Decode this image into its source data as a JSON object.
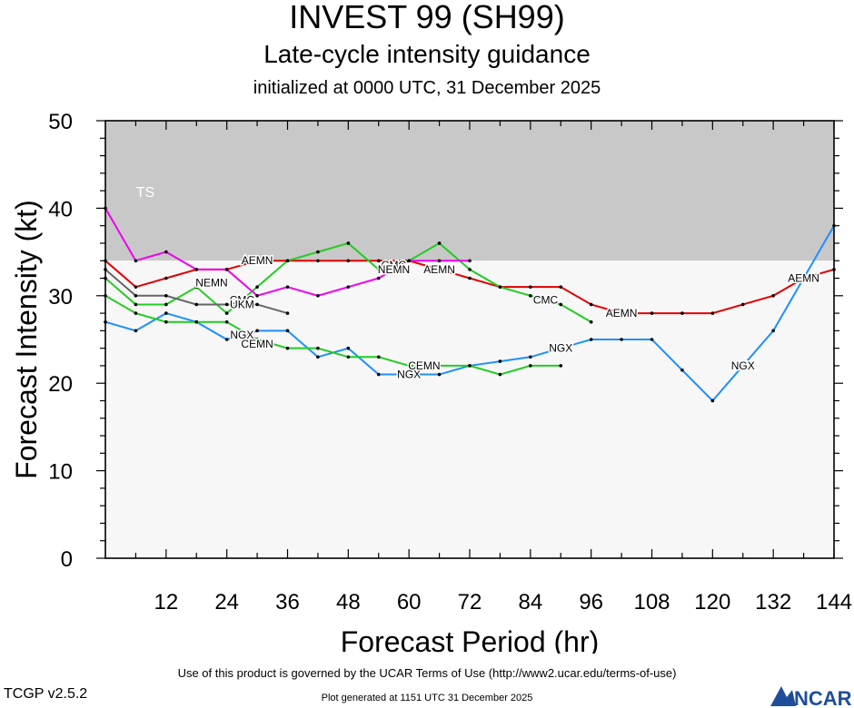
{
  "header": {
    "title": "INVEST 99 (SH99)",
    "subtitle": "Late-cycle intensity guidance",
    "initialized": "initialized at 0000 UTC, 31 December 2025"
  },
  "footer": {
    "terms": "Use of this product is governed by the UCAR Terms of Use (http://www2.ucar.edu/terms-of-use)",
    "generated": "Plot generated at 1151 UTC   31 December 2025",
    "version": "TCGP v2.5.2",
    "logo_text": "NCAR"
  },
  "chart_data": {
    "type": "line",
    "xlabel": "Forecast Period (hr)",
    "ylabel": "Forecast Intensity (kt)",
    "xlim": [
      0,
      144
    ],
    "ylim": [
      0,
      50
    ],
    "xticks": [
      12,
      24,
      36,
      48,
      60,
      72,
      84,
      96,
      108,
      120,
      132,
      144
    ],
    "yticks": [
      0,
      10,
      20,
      30,
      40,
      50
    ],
    "bands": [
      {
        "label": "TS",
        "from": 34,
        "to": 50,
        "color": "#c8c8c8"
      },
      {
        "label": "",
        "from": 0,
        "to": 34,
        "color": "#f7f7f7"
      }
    ],
    "series": [
      {
        "name": "AEMN",
        "color": "#e00000",
        "x": [
          0,
          6,
          12,
          18,
          24,
          30,
          36,
          42,
          48,
          54,
          60,
          66,
          72,
          78,
          84,
          90,
          96,
          102,
          108,
          114,
          120,
          126,
          132,
          138,
          144
        ],
        "y": [
          34,
          31,
          32,
          33,
          33,
          34,
          34,
          34,
          34,
          34,
          34,
          33,
          32,
          31,
          31,
          31,
          29,
          28,
          28,
          28,
          28,
          29,
          30,
          32,
          33
        ],
        "labels": [
          {
            "x": 30,
            "y": 34,
            "text": "AEMN"
          },
          {
            "x": 66,
            "y": 33,
            "text": "AEMN"
          },
          {
            "x": 102,
            "y": 28,
            "text": "AEMN"
          },
          {
            "x": 138,
            "y": 32,
            "text": "AEMN"
          }
        ]
      },
      {
        "name": "NGX",
        "color": "#1e90ff",
        "x": [
          0,
          6,
          12,
          18,
          24,
          30,
          36,
          42,
          48,
          54,
          60,
          66,
          72,
          78,
          84,
          90,
          96,
          102,
          108,
          114,
          120,
          126,
          132,
          138,
          144
        ],
        "y": [
          27,
          26,
          28,
          27,
          25,
          26,
          26,
          23,
          24,
          21,
          21,
          21,
          22,
          22.5,
          23,
          24,
          25,
          25,
          25,
          21.5,
          18,
          22,
          26,
          32,
          38
        ],
        "labels": [
          {
            "x": 27,
            "y": 25.5,
            "text": "NGX"
          },
          {
            "x": 60,
            "y": 21,
            "text": "NGX"
          },
          {
            "x": 90,
            "y": 24,
            "text": "NGX"
          },
          {
            "x": 126,
            "y": 22,
            "text": "NGX"
          }
        ]
      },
      {
        "name": "CEMN",
        "color": "#22cc22",
        "x": [
          0,
          6,
          12,
          18,
          24,
          30,
          36,
          42,
          48,
          54,
          60,
          66,
          72,
          78,
          84,
          90
        ],
        "y": [
          30,
          28,
          27,
          27,
          27,
          25,
          24,
          24,
          23,
          23,
          22,
          22,
          22,
          21,
          22,
          22
        ],
        "labels": [
          {
            "x": 30,
            "y": 24.5,
            "text": "CEMN"
          },
          {
            "x": 63,
            "y": 22,
            "text": "CEMN"
          }
        ]
      },
      {
        "name": "CMC",
        "color": "#22cc22",
        "x": [
          0,
          6,
          12,
          18,
          24,
          30,
          36,
          42,
          48,
          54,
          60,
          66,
          72,
          78,
          84,
          90,
          96
        ],
        "y": [
          32,
          29,
          29,
          31,
          28,
          31,
          34,
          35,
          36,
          33,
          34,
          36,
          33,
          31,
          30,
          29,
          27
        ],
        "labels": [
          {
            "x": 27,
            "y": 29.5,
            "text": "CMC"
          },
          {
            "x": 57,
            "y": 33.5,
            "text": "CMC"
          },
          {
            "x": 87,
            "y": 29.5,
            "text": "CMC"
          }
        ]
      },
      {
        "name": "NEMN",
        "color": "#ee00ee",
        "x": [
          0,
          6,
          12,
          18,
          24,
          30,
          36,
          42,
          48,
          54,
          60,
          66,
          72
        ],
        "y": [
          40,
          34,
          35,
          33,
          33,
          30,
          31,
          30,
          31,
          32,
          34,
          34,
          34
        ],
        "labels": [
          {
            "x": 21,
            "y": 31.5,
            "text": "NEMN"
          },
          {
            "x": 57,
            "y": 33,
            "text": "NEMN"
          }
        ]
      },
      {
        "name": "UKM",
        "color": "#666666",
        "x": [
          0,
          6,
          12,
          18,
          24,
          30,
          36
        ],
        "y": [
          33,
          30,
          30,
          29,
          29,
          29,
          28
        ],
        "labels": [
          {
            "x": 27,
            "y": 29,
            "text": "UKM"
          }
        ]
      }
    ]
  }
}
